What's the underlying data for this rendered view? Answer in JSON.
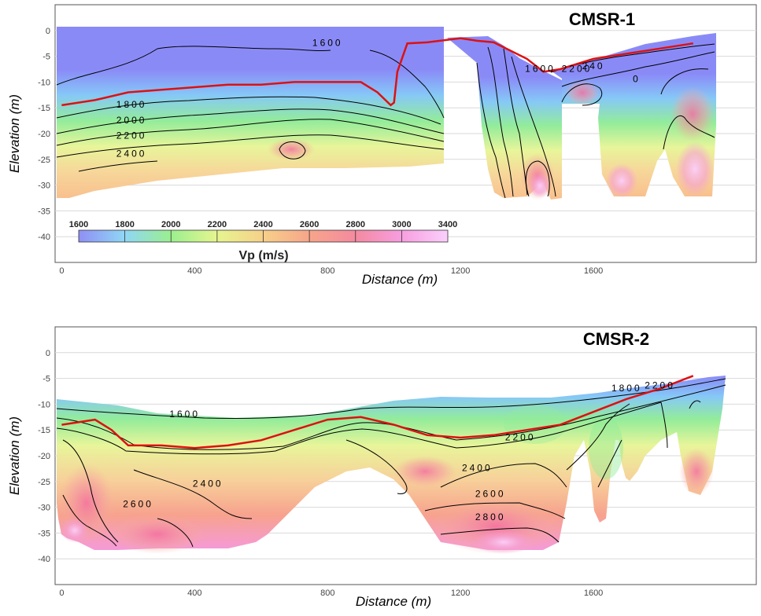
{
  "chart_data": [
    {
      "type": "heatmap",
      "title": "CMSR-1",
      "xlabel": "Distance (m)",
      "ylabel": "Elevation (m)",
      "xlim": [
        -20,
        2090
      ],
      "ylim": [
        -45,
        5
      ],
      "x_ticks": [
        0,
        400,
        800,
        1200,
        1600
      ],
      "y_ticks": [
        0,
        -5,
        -10,
        -15,
        -20,
        -25,
        -30,
        -35,
        -40
      ],
      "grid": true,
      "colorbar": {
        "title": "Vp (m/s)",
        "ticks": [
          1600,
          1800,
          2000,
          2200,
          2400,
          2600,
          2800,
          3000,
          3400
        ],
        "colors": [
          "#8f8ff5",
          "#8fd7f5",
          "#9bef8f",
          "#e6f58f",
          "#f7d08a",
          "#f7a58a",
          "#f48aa0",
          "#f79ee0",
          "#fbd0fb"
        ]
      },
      "contour_labels": [
        {
          "value": "1600",
          "x": 800,
          "y": -3
        },
        {
          "value": "1800",
          "x": 210,
          "y": -15
        },
        {
          "value": "2000",
          "x": 210,
          "y": -18
        },
        {
          "value": "2200",
          "x": 210,
          "y": -21
        },
        {
          "value": "2400",
          "x": 210,
          "y": -24.5
        },
        {
          "value": "1600",
          "x": 1440,
          "y": -8
        },
        {
          "value": "2200",
          "x": 1550,
          "y": -8
        },
        {
          "value": "240",
          "x": 1600,
          "y": -7.5
        },
        {
          "value": "0",
          "x": 1730,
          "y": -10
        }
      ],
      "water_table": {
        "x": [
          0,
          100,
          200,
          300,
          400,
          500,
          600,
          700,
          800,
          900,
          950,
          990,
          1000,
          1010,
          1040,
          1100,
          1200,
          1250,
          1300,
          1400,
          1450,
          1500,
          1600,
          1700,
          1800,
          1900
        ],
        "y": [
          -14.5,
          -13.5,
          -12,
          -11.5,
          -11,
          -10.5,
          -10.5,
          -10,
          -10,
          -10,
          -12,
          -14.5,
          -14,
          -8,
          -2.5,
          -2.3,
          -1.5,
          -2,
          -2.3,
          -5.5,
          -8,
          -7.5,
          -5.5,
          -4.5,
          -3.5,
          -2.5
        ],
        "color": "#dd1111"
      }
    },
    {
      "type": "heatmap",
      "title": "CMSR-2",
      "xlabel": "Distance (m)",
      "ylabel": "Elevation (m)",
      "xlim": [
        -20,
        2090
      ],
      "ylim": [
        -45,
        5
      ],
      "x_ticks": [
        0,
        400,
        800,
        1200,
        1600
      ],
      "y_ticks": [
        0,
        -5,
        -10,
        -15,
        -20,
        -25,
        -30,
        -35,
        -40
      ],
      "grid": true,
      "contour_labels": [
        {
          "value": "1600",
          "x": 370,
          "y": -12.5
        },
        {
          "value": "2200",
          "x": 1380,
          "y": -17
        },
        {
          "value": "2400",
          "x": 1250,
          "y": -23
        },
        {
          "value": "2400",
          "x": 440,
          "y": -26
        },
        {
          "value": "2600",
          "x": 230,
          "y": -30
        },
        {
          "value": "2600",
          "x": 1290,
          "y": -28
        },
        {
          "value": "2800",
          "x": 1290,
          "y": -32.5
        },
        {
          "value": "1800",
          "x": 1700,
          "y": -7.5
        },
        {
          "value": "2200",
          "x": 1800,
          "y": -7
        }
      ],
      "water_table": {
        "x": [
          0,
          100,
          150,
          200,
          300,
          400,
          500,
          600,
          700,
          800,
          900,
          1000,
          1100,
          1200,
          1300,
          1400,
          1500,
          1600,
          1700,
          1800,
          1900
        ],
        "y": [
          -14,
          -13,
          -15,
          -18,
          -18,
          -18.5,
          -18,
          -17,
          -15,
          -13,
          -12.5,
          -14,
          -16,
          -16.5,
          -16,
          -15,
          -14,
          -11.5,
          -9,
          -7,
          -4.5
        ],
        "color": "#dd1111"
      }
    }
  ]
}
